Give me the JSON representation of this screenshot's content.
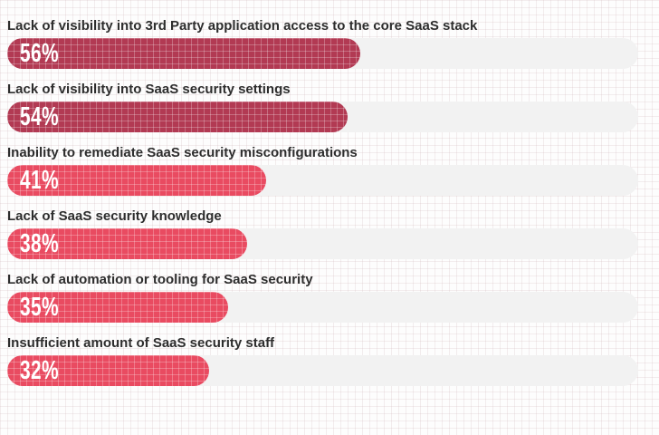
{
  "page": {
    "background_color": "#fdfdfd",
    "grid_line_color": "rgba(205,175,180,0.22)"
  },
  "chart_data": {
    "type": "bar",
    "orientation": "horizontal",
    "title": "",
    "xlabel": "",
    "ylabel": "",
    "xlim": [
      0,
      100
    ],
    "grid": "faint background grid, no axis lines",
    "legend": "none",
    "categories": [
      "Lack of visibility into 3rd Party application access to the core SaaS stack",
      "Lack of visibility into SaaS security settings",
      "Inability to remediate SaaS security misconfigurations",
      "Lack of SaaS security knowledge",
      "Lack of automation or tooling for SaaS security",
      "Insufficient amount of SaaS security staff"
    ],
    "values": [
      56,
      54,
      41,
      38,
      35,
      32
    ],
    "value_labels": [
      "56%",
      "54%",
      "41%",
      "38%",
      "35%",
      "32%"
    ],
    "bar_colors": [
      "#b23a53",
      "#b23a53",
      "#e94b61",
      "#e94b61",
      "#e94b61",
      "#e94b61"
    ],
    "track_color": "#f2f2f2",
    "value_label_color": "#ffffff",
    "category_label_color": "#2d2d2d",
    "bar_texture": "white crosshatch grid overlay"
  }
}
